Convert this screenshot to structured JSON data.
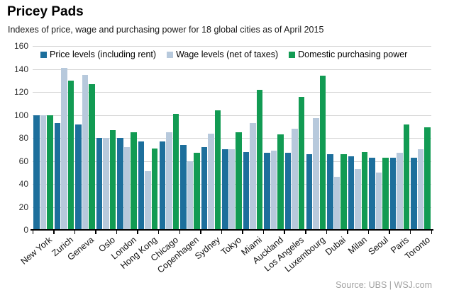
{
  "header": {
    "title": "Pricey Pads",
    "subtitle": "Indexes of price, wage and purchasing power for 18 global cities as of April 2015"
  },
  "source_text": "Source: UBS  |  WSJ.com",
  "colors": {
    "price": "#1d6f9c",
    "wage": "#b7c9dc",
    "purchasing_power": "#129b53",
    "gridline": "#d4d4d4",
    "axis": "#000000",
    "source_gray": "#a2a2a2"
  },
  "chart_data": {
    "type": "bar",
    "title": "Pricey Pads",
    "subtitle": "Indexes of price, wage and purchasing power for 18 global cities as of April 2015",
    "categories": [
      "New York",
      "Zurich",
      "Geneva",
      "Oslo",
      "London",
      "Hong Kong",
      "Chicago",
      "Copenhagen",
      "Sydney",
      "Tokyo",
      "Miami",
      "Auckland",
      "Los Angeles",
      "Luxembourg",
      "Dubai",
      "Milan",
      "Seoul",
      "Paris",
      "Toronto"
    ],
    "series": [
      {
        "name": "Price levels (including rent)",
        "color": "#1d6f9c",
        "values": [
          100,
          93,
          92,
          80,
          80,
          77,
          77,
          74,
          72,
          70,
          68,
          67,
          67,
          66,
          66,
          64,
          63,
          63,
          63
        ]
      },
      {
        "name": "Wage levels (net of taxes)",
        "color": "#b7c9dc",
        "values": [
          100,
          141,
          135,
          80,
          72,
          51,
          85,
          60,
          84,
          70,
          93,
          69,
          88,
          97,
          46,
          53,
          50,
          67,
          70
        ]
      },
      {
        "name": "Domestic purchasing power",
        "color": "#129b53",
        "values": [
          100,
          130,
          127,
          87,
          85,
          71,
          101,
          67,
          104,
          85,
          122,
          83,
          116,
          134,
          66,
          68,
          63,
          92,
          89
        ]
      }
    ],
    "ylabel": "",
    "xlabel": "",
    "ylim": [
      0,
      160
    ],
    "ytick_interval": 20,
    "grid": true,
    "legend_position": "top-inside"
  }
}
